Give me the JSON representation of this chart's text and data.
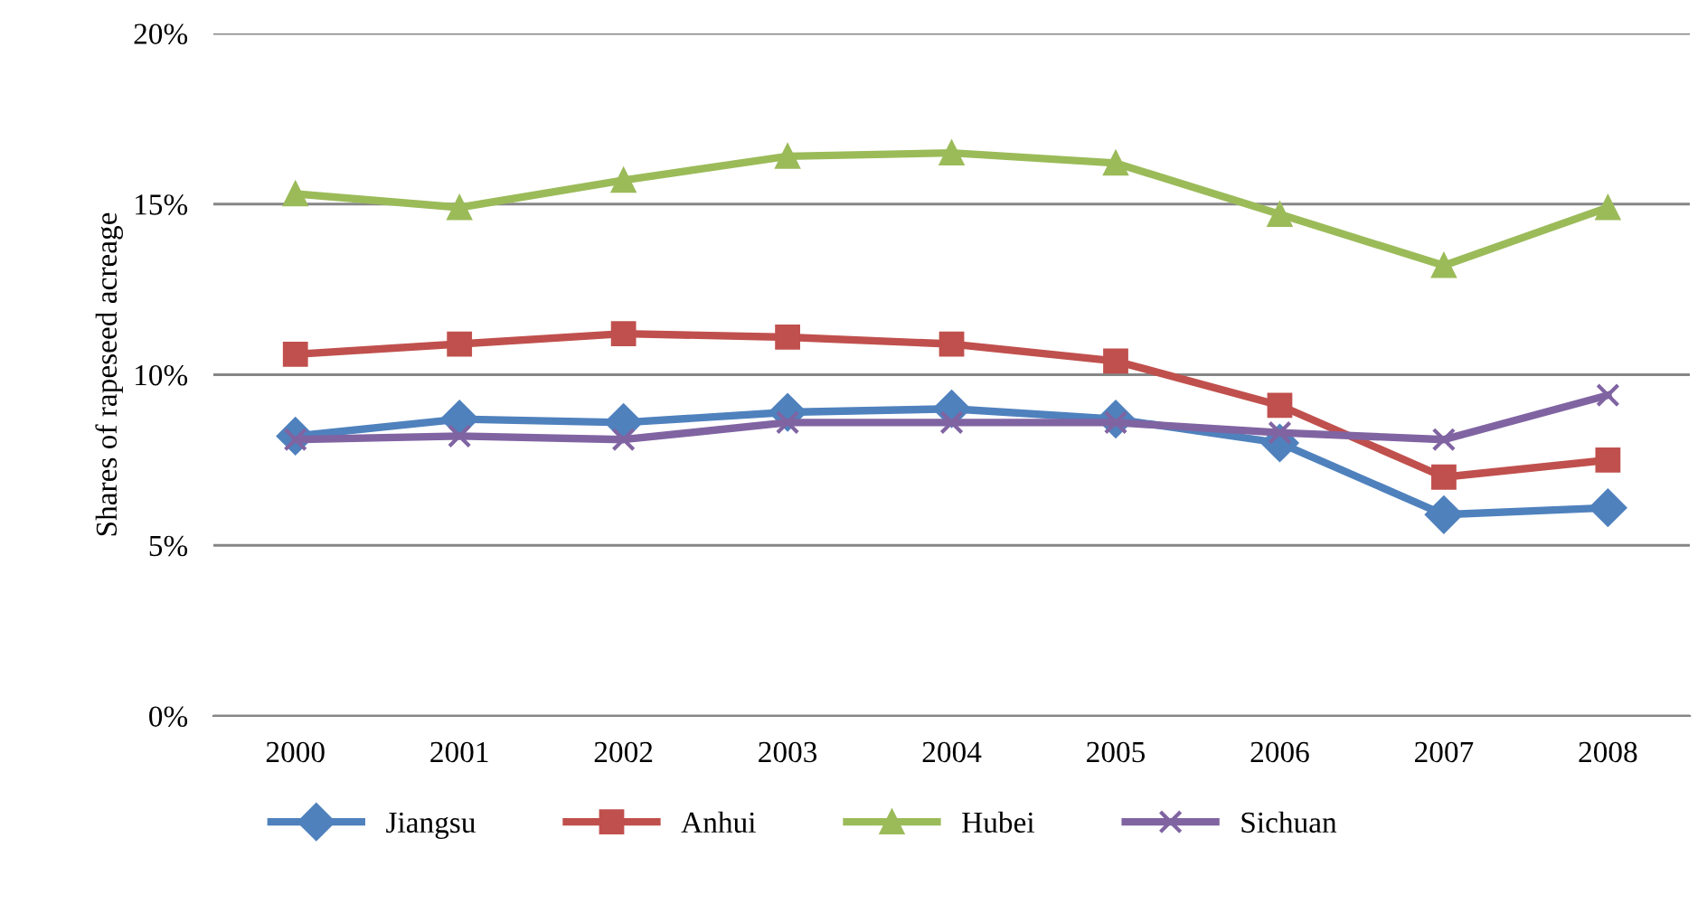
{
  "chart_data": {
    "type": "line",
    "ylabel": "Shares of rapeseed acreage",
    "categories": [
      "2000",
      "2001",
      "2002",
      "2003",
      "2004",
      "2005",
      "2006",
      "2007",
      "2008"
    ],
    "series": [
      {
        "name": "Jiangsu",
        "color": "#4f81bd",
        "marker": "diamond",
        "values": [
          8.2,
          8.7,
          8.6,
          8.9,
          9.0,
          8.7,
          8.0,
          5.9,
          6.1
        ]
      },
      {
        "name": "Anhui",
        "color": "#c0504d",
        "marker": "square",
        "values": [
          10.6,
          10.9,
          11.2,
          11.1,
          10.9,
          10.4,
          9.1,
          7.0,
          7.5
        ]
      },
      {
        "name": "Hubei",
        "color": "#9bbb59",
        "marker": "triangle",
        "values": [
          15.3,
          14.9,
          15.7,
          16.4,
          16.5,
          16.2,
          14.7,
          13.2,
          14.9
        ]
      },
      {
        "name": "Sichuan",
        "color": "#8064a2",
        "marker": "cross",
        "values": [
          8.1,
          8.2,
          8.1,
          8.6,
          8.6,
          8.6,
          8.3,
          8.1,
          9.4
        ]
      }
    ],
    "ylim": [
      0,
      20
    ],
    "yticks": [
      {
        "value": 0,
        "label": "0%"
      },
      {
        "value": 5,
        "label": "5%"
      },
      {
        "value": 10,
        "label": "10%"
      },
      {
        "value": 15,
        "label": "15%"
      },
      {
        "value": 20,
        "label": "20%"
      }
    ],
    "grid": "y",
    "legend": "bottom",
    "line_style": "solid"
  }
}
